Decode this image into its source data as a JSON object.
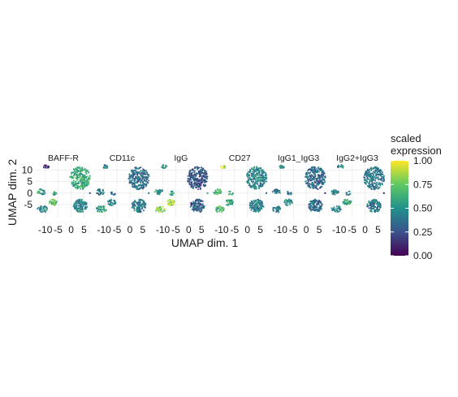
{
  "chart_data": {
    "type": "scatter",
    "description_of_view": "faceted UMAP embedding colored by scaled expression",
    "xlabel": "UMAP dim. 1",
    "ylabel": "UMAP dim. 2",
    "xlim": [
      -14,
      8
    ],
    "ylim": [
      -11,
      13
    ],
    "x_ticks": [
      {
        "value": -10,
        "label": "-10"
      },
      {
        "value": -5,
        "label": "-5"
      },
      {
        "value": 0,
        "label": "0"
      },
      {
        "value": 5,
        "label": "5"
      }
    ],
    "y_ticks": [
      {
        "value": 10,
        "label": "10"
      },
      {
        "value": 5,
        "label": "5"
      },
      {
        "value": 0,
        "label": "0"
      },
      {
        "value": -5,
        "label": "-5"
      }
    ],
    "grid": true,
    "panels": [
      {
        "label": "BAFF-R",
        "levels": {
          "topLeft": 0.15,
          "midLeft": 0.55,
          "bigRight": 0.6,
          "lowMid": 0.75,
          "lowLeft": 0.45,
          "lowRight": 0.45,
          "dot": 0.2
        }
      },
      {
        "label": "CD11c",
        "levels": {
          "topLeft": 0.4,
          "midLeft": 0.4,
          "bigRight": 0.38,
          "lowMid": 0.45,
          "lowLeft": 0.55,
          "lowRight": 0.4,
          "dot": 0.4
        }
      },
      {
        "label": "IgG",
        "levels": {
          "topLeft": 0.55,
          "midLeft": 0.55,
          "bigRight": 0.25,
          "lowMid": 0.85,
          "lowLeft": 0.8,
          "lowRight": 0.3,
          "dot": 0.6
        }
      },
      {
        "label": "CD27",
        "levels": {
          "topLeft": 0.9,
          "midLeft": 0.65,
          "bigRight": 0.45,
          "lowMid": 0.6,
          "lowLeft": 0.65,
          "lowRight": 0.42,
          "dot": 0.3
        }
      },
      {
        "label": "IgG1_IgG3",
        "levels": {
          "topLeft": 0.45,
          "midLeft": 0.4,
          "bigRight": 0.35,
          "lowMid": 0.45,
          "lowLeft": 0.45,
          "lowRight": 0.35,
          "dot": 0.1
        }
      },
      {
        "label": "IgG2+IgG3",
        "levels": {
          "topLeft": 0.45,
          "midLeft": 0.45,
          "bigRight": 0.4,
          "lowMid": 0.55,
          "lowLeft": 0.45,
          "lowRight": 0.4,
          "dot": 0.1
        }
      }
    ],
    "legend": {
      "title_lines": [
        "scaled",
        "expression"
      ],
      "placement": "right",
      "scale": "viridis",
      "range": [
        0,
        1
      ],
      "ticks": [
        {
          "value": 1.0,
          "label": "1.00"
        },
        {
          "value": 0.75,
          "label": "0.75"
        },
        {
          "value": 0.5,
          "label": "0.50"
        },
        {
          "value": 0.25,
          "label": "0.25"
        },
        {
          "value": 0.0,
          "label": "0.00"
        }
      ]
    }
  },
  "colors": {
    "grid": "#ebebeb",
    "text": "#1a1a1a",
    "viridis_stops": [
      "#440154",
      "#3b528b",
      "#21918c",
      "#5ec962",
      "#fde725"
    ]
  }
}
